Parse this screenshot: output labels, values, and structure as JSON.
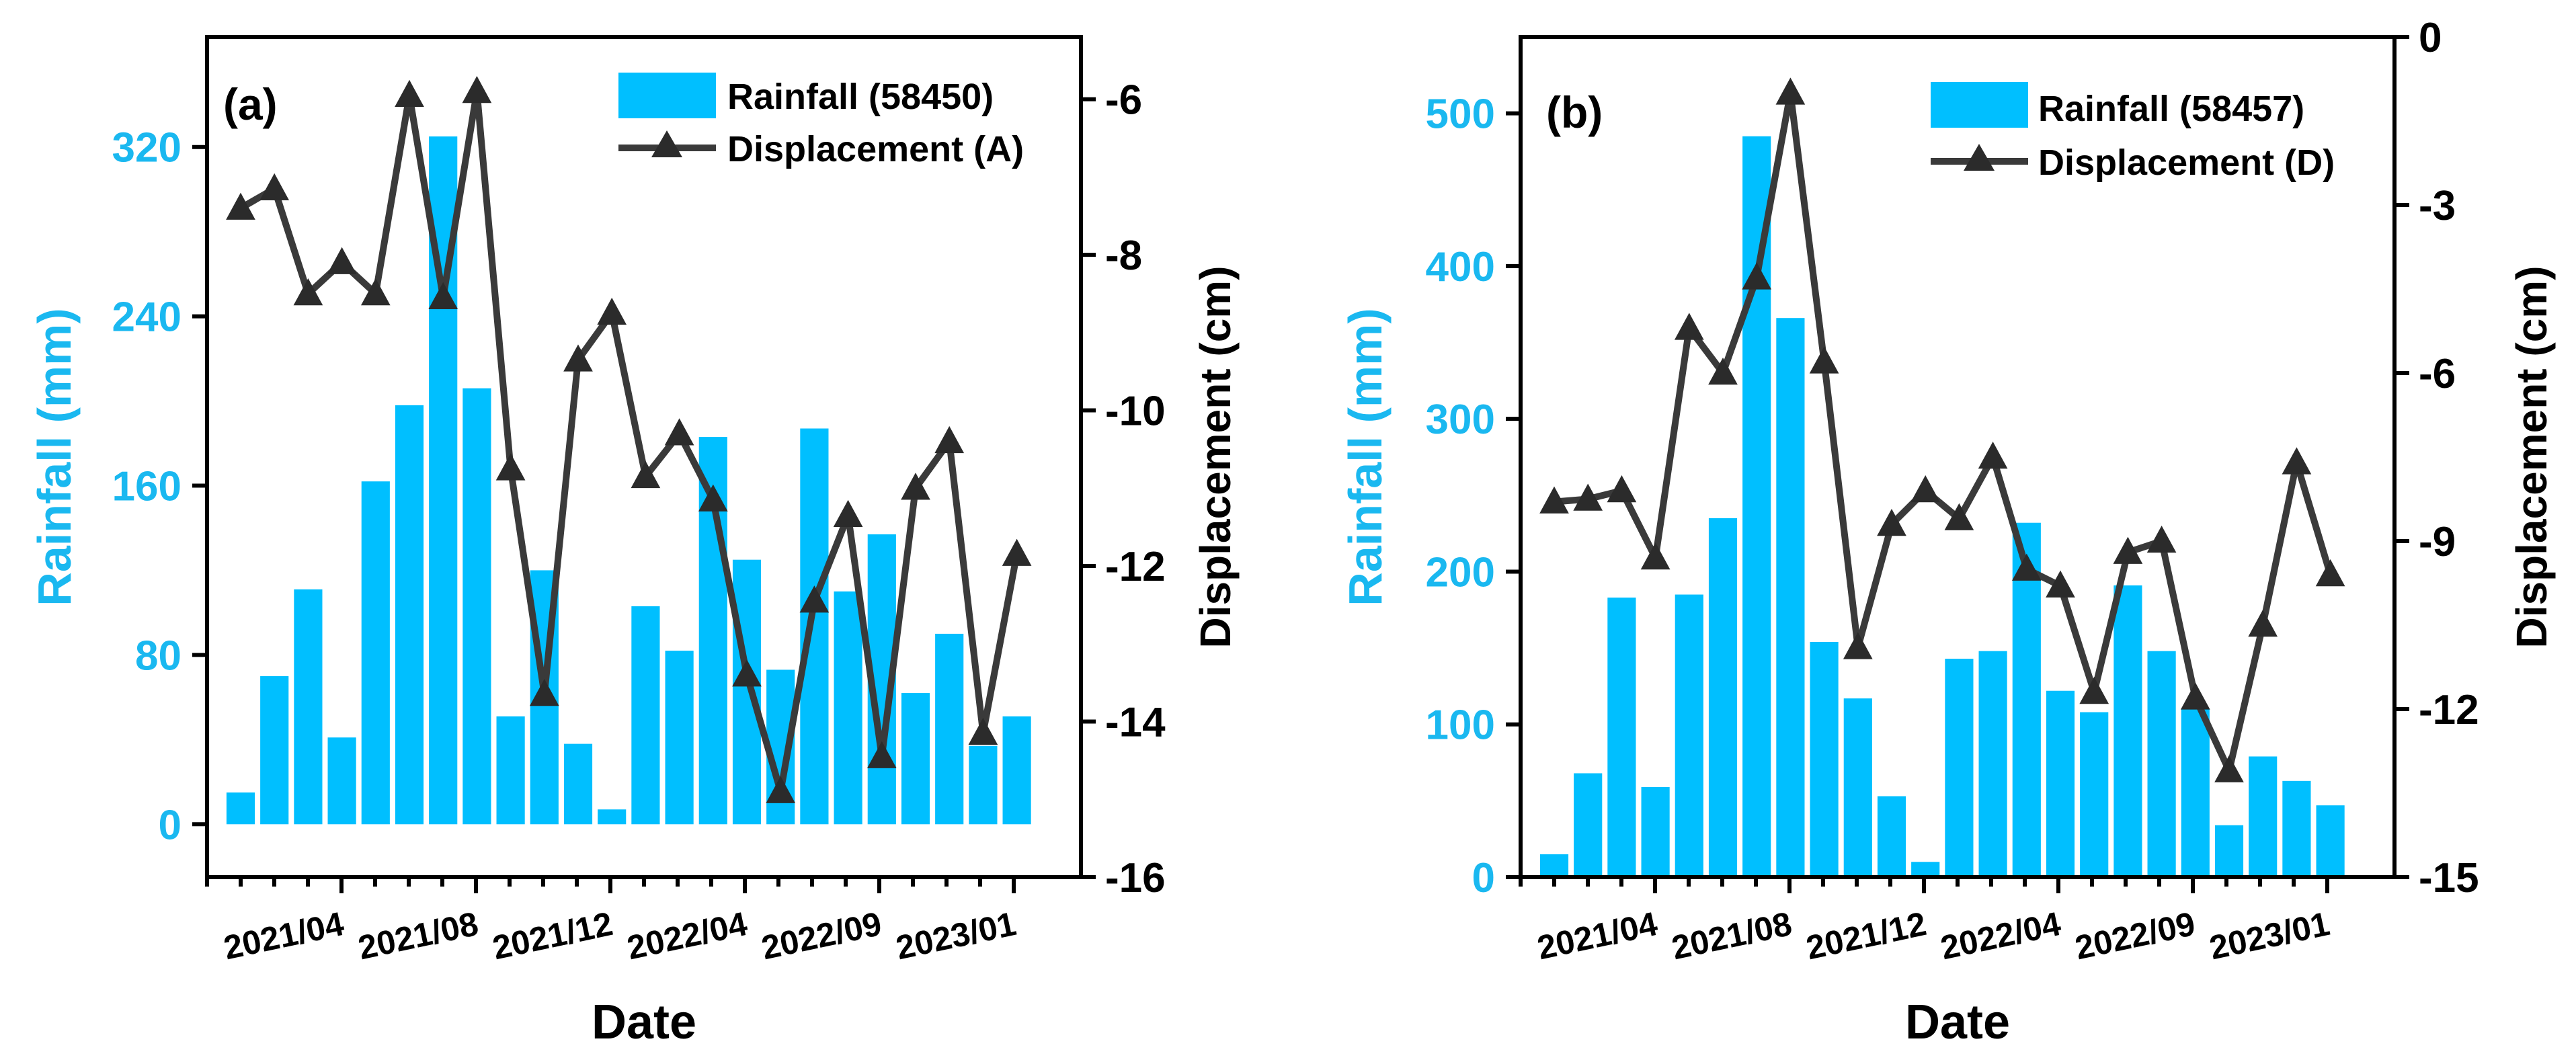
{
  "chart_data": [
    {
      "type": "bar",
      "panel_label": "(a)",
      "xlabel": "Date",
      "ylabel_left": "Rainfall (mm)",
      "ylabel_right": "Displacement (cm)",
      "date_ticks": [
        "2021/04",
        "2021/08",
        "2021/12",
        "2022/04",
        "2022/09",
        "2023/01"
      ],
      "left_ylim": [
        -25,
        372
      ],
      "left_ticks": [
        0,
        80,
        160,
        240,
        320
      ],
      "right_ylim": [
        -16,
        -5.2
      ],
      "right_ticks": [
        -16,
        -14,
        -12,
        -10,
        -8,
        -6
      ],
      "series": [
        {
          "name": "Rainfall (58450)",
          "kind": "bar",
          "axis": "left",
          "values": [
            15,
            70,
            111,
            41,
            162,
            198,
            325,
            206,
            51,
            120,
            38,
            7,
            103,
            82,
            183,
            125,
            73,
            187,
            110,
            137,
            62,
            90,
            37,
            51
          ]
        },
        {
          "name": "Displacement (A)",
          "kind": "line",
          "axis": "right",
          "values": [
            -7.4,
            -7.15,
            -8.5,
            -8.1,
            -8.5,
            -5.95,
            -8.55,
            -5.9,
            -10.75,
            -13.65,
            -9.35,
            -8.75,
            -10.85,
            -10.3,
            -11.15,
            -13.4,
            -14.9,
            -12.45,
            -11.35,
            -14.45,
            -11.0,
            -10.4,
            -14.15,
            -11.85
          ]
        }
      ]
    },
    {
      "type": "bar",
      "panel_label": "(b)",
      "xlabel": "Date",
      "ylabel_left": "Rainfall (mm)",
      "ylabel_right": "Displacement (cm)",
      "date_ticks": [
        "2021/04",
        "2021/08",
        "2021/12",
        "2022/04",
        "2022/09",
        "2023/01"
      ],
      "left_ylim": [
        0,
        550
      ],
      "left_ticks": [
        0,
        100,
        200,
        300,
        400,
        500
      ],
      "right_ylim": [
        -15,
        0
      ],
      "right_ticks": [
        -15,
        -12,
        -9,
        -6,
        -3,
        0
      ],
      "series": [
        {
          "name": "Rainfall (58457)",
          "kind": "bar",
          "axis": "left",
          "values": [
            15,
            68,
            183,
            59,
            185,
            235,
            485,
            366,
            154,
            117,
            53,
            10,
            143,
            148,
            232,
            122,
            108,
            191,
            148,
            110,
            34,
            79,
            63,
            47
          ]
        },
        {
          "name": "Displacement (D)",
          "kind": "line",
          "axis": "right",
          "values": [
            -8.3,
            -8.25,
            -8.1,
            -9.3,
            -5.2,
            -6.0,
            -4.3,
            -1.0,
            -5.8,
            -10.9,
            -8.7,
            -8.1,
            -8.6,
            -7.5,
            -9.5,
            -9.8,
            -11.7,
            -9.2,
            -9.0,
            -11.8,
            -13.1,
            -10.5,
            -7.6,
            -9.6
          ]
        }
      ]
    }
  ],
  "colors": {
    "bar": "#00bfff",
    "line": "#3a3a3a",
    "marker": "#2b2b2b",
    "axis": "#000000",
    "left_axis_text": "#1ab8f0"
  }
}
